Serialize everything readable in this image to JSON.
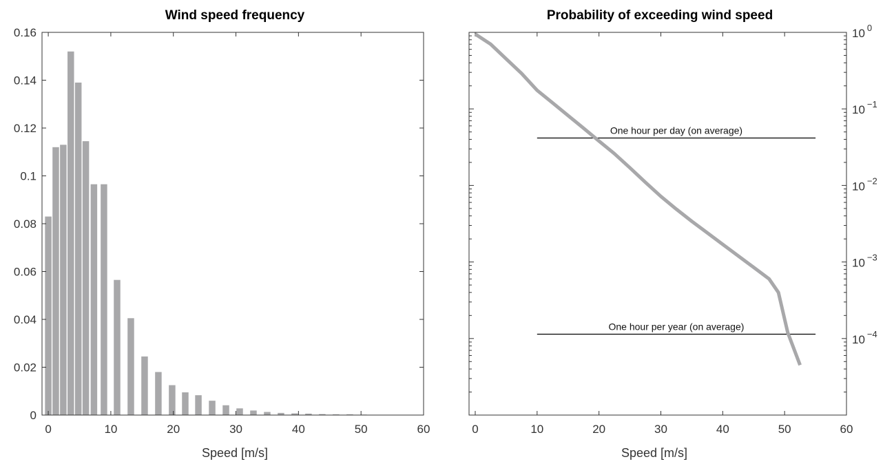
{
  "chart_data": [
    {
      "type": "bar",
      "title": "Wind speed frequency",
      "xlabel": "Speed [m/s]",
      "ylabel": "",
      "xlim": [
        -1,
        60
      ],
      "ylim": [
        0,
        0.16
      ],
      "xticks": [
        "0",
        "10",
        "20",
        "30",
        "40",
        "50",
        "60"
      ],
      "yticks": [
        "0",
        "0.02",
        "0.04",
        "0.06",
        "0.08",
        "0.1",
        "0.12",
        "0.14",
        "0.16"
      ],
      "bar_color": "#a8a8aa",
      "x": [
        0,
        1.2,
        2.4,
        3.6,
        4.8,
        6.0,
        7.3,
        8.9,
        11.0,
        13.2,
        15.4,
        17.6,
        19.8,
        21.9,
        24.0,
        26.2,
        28.4,
        30.6,
        32.8,
        35.0,
        37.2,
        39.4,
        41.6,
        43.8,
        46.0,
        48.2,
        50.4,
        52.6,
        54.8
      ],
      "values": [
        0.083,
        0.112,
        0.113,
        0.152,
        0.139,
        0.1145,
        0.0965,
        0.0965,
        0.0565,
        0.0405,
        0.0245,
        0.018,
        0.0125,
        0.0095,
        0.0083,
        0.006,
        0.0041,
        0.0028,
        0.0019,
        0.0013,
        0.0009,
        0.0007,
        0.0006,
        0.0004,
        0.0003,
        0.0003,
        0.0002,
        0.0001,
        0.0001
      ],
      "grid": false
    },
    {
      "type": "line",
      "title": "Probability of exceeding wind speed",
      "xlabel": "Speed [m/s]",
      "ylabel": "",
      "xlim": [
        -1,
        60
      ],
      "ylim": [
        1e-05,
        1
      ],
      "yscale": "log",
      "y_axis_position": "right",
      "xticks": [
        "0",
        "10",
        "20",
        "30",
        "40",
        "50",
        "60"
      ],
      "yticks": [
        {
          "base": "10",
          "exp": "0",
          "value": 1
        },
        {
          "base": "10",
          "exp": "−1",
          "value": 0.1
        },
        {
          "base": "10",
          "exp": "−2",
          "value": 0.01
        },
        {
          "base": "10",
          "exp": "−3",
          "value": 0.001
        },
        {
          "base": "10",
          "exp": "−4",
          "value": 0.0001
        }
      ],
      "line_color": "#a8a8aa",
      "series": [
        {
          "x": [
            0,
            2.5,
            5,
            7.5,
            10,
            12.5,
            15,
            17.5,
            20,
            22.5,
            25,
            27.5,
            30,
            32.5,
            35,
            37.5,
            40,
            42.5,
            45,
            47.5,
            49,
            50.5,
            52.5
          ],
          "y": [
            0.95,
            0.7,
            0.45,
            0.29,
            0.175,
            0.12,
            0.082,
            0.056,
            0.038,
            0.026,
            0.017,
            0.011,
            0.0072,
            0.0049,
            0.0034,
            0.0024,
            0.0017,
            0.0012,
            0.00085,
            0.0006,
            0.0004,
            0.00012,
            4.5e-05
          ]
        }
      ],
      "annotations": [
        {
          "text": "One hour per day (on average)",
          "x_start": 10,
          "x_end": 55,
          "y": 0.04167
        },
        {
          "text": "One hour per year (on average)",
          "x_start": 10,
          "x_end": 55,
          "y": 0.000114
        }
      ],
      "grid": false
    }
  ]
}
